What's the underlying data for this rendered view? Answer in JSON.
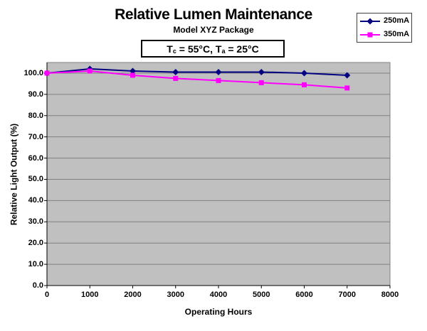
{
  "chart_data": {
    "type": "line",
    "title": "Relative Lumen Maintenance",
    "subtitle": "Model XYZ Package",
    "condition": {
      "plain": "Tc = 55°C, Ta = 25°C",
      "segments": [
        {
          "text": "T"
        },
        {
          "text": "c",
          "sub": true
        },
        {
          "text": " = 55°C, T"
        },
        {
          "text": "a",
          "sub": true
        },
        {
          "text": " = 25°C"
        }
      ]
    },
    "xlabel": "Operating Hours",
    "ylabel": "Relative Light Output (%)",
    "x": [
      0,
      1000,
      2000,
      3000,
      4000,
      5000,
      6000,
      7000
    ],
    "series": [
      {
        "name": "250mA",
        "color": "#000080",
        "marker": "diamond",
        "values": [
          100,
          102,
          101,
          100.5,
          100.5,
          100.5,
          100,
          99
        ]
      },
      {
        "name": "350mA",
        "color": "#FF00FF",
        "marker": "square",
        "values": [
          100,
          101,
          99,
          97.5,
          96.5,
          95.5,
          94.5,
          93
        ]
      }
    ],
    "xlim": [
      0,
      8000
    ],
    "ylim": [
      0,
      105
    ],
    "x_tick_values": [
      0,
      1000,
      2000,
      3000,
      4000,
      5000,
      6000,
      7000,
      8000
    ],
    "x_tick_labels": [
      "0",
      "1000",
      "2000",
      "3000",
      "4000",
      "5000",
      "6000",
      "7000",
      "8000"
    ],
    "y_tick_values": [
      0,
      10,
      20,
      30,
      40,
      50,
      60,
      70,
      80,
      90,
      100
    ],
    "y_tick_labels": [
      "0.0",
      "10.0",
      "20.0",
      "30.0",
      "40.0",
      "50.0",
      "60.0",
      "70.0",
      "80.0",
      "90.0",
      "100.0"
    ],
    "grid": true,
    "legend_position": "top-right",
    "colors": {
      "plot_bg": "#C0C0C0",
      "gridline": "#808080",
      "plot_border": "#808080",
      "axis": "#000000",
      "text": "#000000"
    }
  }
}
